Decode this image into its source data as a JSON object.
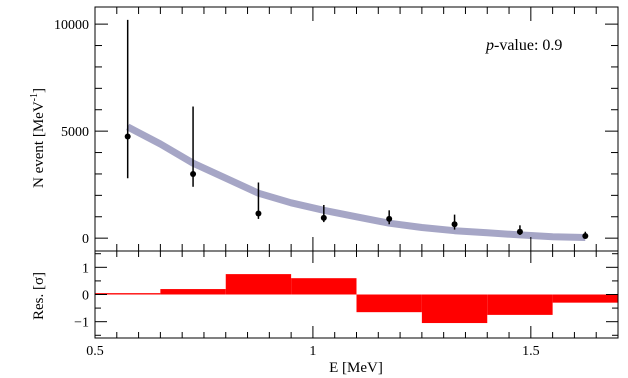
{
  "chart_data": [
    {
      "type": "scatter",
      "panel": "main",
      "ylabel_main": "N event [MeV",
      "ylabel_sup": "-1",
      "ylabel_close": "]",
      "ylim": [
        -600,
        10800
      ],
      "xlim": [
        0.5,
        1.7
      ],
      "yticks": [
        0,
        5000,
        10000
      ],
      "ytick_labels": [
        "0",
        "5000",
        "10000"
      ],
      "annotation_prefix": "p",
      "annotation_suffix": "-value: 0.9",
      "points": [
        {
          "x": 0.575,
          "y": 4750,
          "ylo": 2800,
          "yhi": 10200
        },
        {
          "x": 0.725,
          "y": 3000,
          "ylo": 2400,
          "yhi": 6150
        },
        {
          "x": 0.875,
          "y": 1150,
          "ylo": 900,
          "yhi": 2600
        },
        {
          "x": 1.025,
          "y": 950,
          "ylo": 750,
          "yhi": 1550
        },
        {
          "x": 1.175,
          "y": 900,
          "ylo": 650,
          "yhi": 1300
        },
        {
          "x": 1.325,
          "y": 650,
          "ylo": 400,
          "yhi": 1100
        },
        {
          "x": 1.475,
          "y": 300,
          "ylo": 150,
          "yhi": 600
        },
        {
          "x": 1.625,
          "y": 100,
          "ylo": 0,
          "yhi": 300
        }
      ],
      "fit_curve": {
        "color": "#a6a6c6",
        "x": [
          0.575,
          0.65,
          0.725,
          0.8,
          0.875,
          0.95,
          1.025,
          1.1,
          1.175,
          1.25,
          1.325,
          1.4,
          1.475,
          1.55,
          1.625
        ],
        "y": [
          5200,
          4400,
          3500,
          2800,
          2100,
          1650,
          1300,
          1000,
          700,
          500,
          350,
          250,
          150,
          70,
          30
        ]
      }
    },
    {
      "type": "bar",
      "panel": "residual",
      "ylabel": "Res. [σ]",
      "xlabel": "E [MeV]",
      "xlim": [
        0.5,
        1.7
      ],
      "ylim": [
        -1.6,
        1.6
      ],
      "yticks": [
        -1,
        0,
        1
      ],
      "ytick_labels": [
        "−1",
        "0",
        "1"
      ],
      "xticks": [
        0.5,
        1,
        1.5
      ],
      "xtick_labels": [
        "0.5",
        "1",
        "1.5"
      ],
      "color": "#ff0000",
      "bins": [
        {
          "x0": 0.5,
          "x1": 0.65,
          "value": 0.05
        },
        {
          "x0": 0.65,
          "x1": 0.8,
          "value": 0.2
        },
        {
          "x0": 0.8,
          "x1": 0.95,
          "value": 0.75
        },
        {
          "x0": 0.95,
          "x1": 1.1,
          "value": 0.6
        },
        {
          "x0": 1.1,
          "x1": 1.25,
          "value": -0.65
        },
        {
          "x0": 1.25,
          "x1": 1.4,
          "value": -1.05
        },
        {
          "x0": 1.4,
          "x1": 1.55,
          "value": -0.75
        },
        {
          "x0": 1.55,
          "x1": 1.7,
          "value": -0.3
        }
      ]
    }
  ]
}
